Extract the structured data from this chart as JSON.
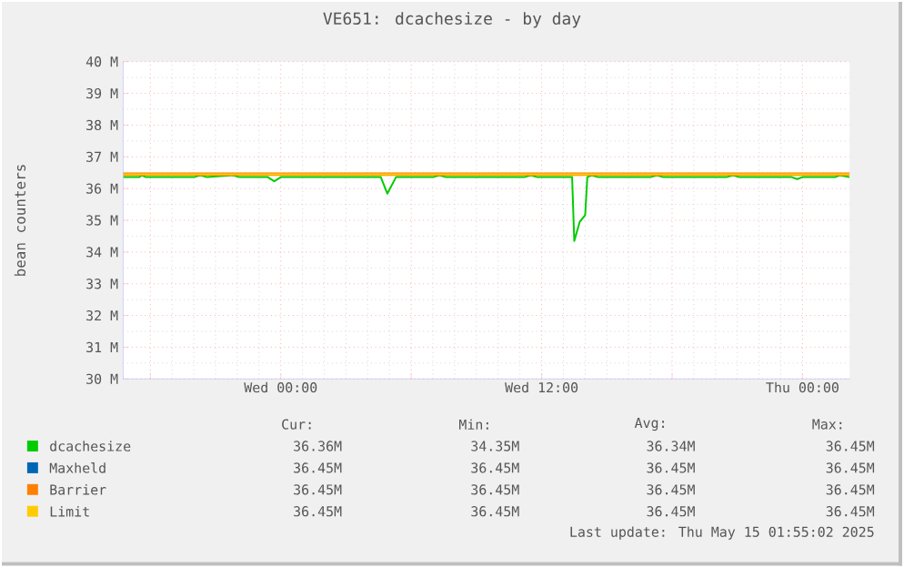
{
  "chart_data": {
    "type": "line",
    "title": "VE651: dcachesize - by day",
    "ylabel": "bean counters",
    "xlim": [
      "2025-05-13T16:45",
      "2025-05-15T02:10"
    ],
    "xticks": [
      {
        "value": "2025-05-13T18:00",
        "label": null
      },
      {
        "value": "2025-05-14T00:00",
        "label": "Wed 00:00"
      },
      {
        "value": "2025-05-14T06:00",
        "label": null
      },
      {
        "value": "2025-05-14T12:00",
        "label": "Wed 12:00"
      },
      {
        "value": "2025-05-14T18:00",
        "label": null
      },
      {
        "value": "2025-05-15T00:00",
        "label": "Thu 00:00"
      }
    ],
    "ylim": [
      30,
      40
    ],
    "yticks": [
      {
        "value": 30,
        "label": "30 M"
      },
      {
        "value": 31,
        "label": "31 M"
      },
      {
        "value": 32,
        "label": "32 M"
      },
      {
        "value": 33,
        "label": "33 M"
      },
      {
        "value": 34,
        "label": "34 M"
      },
      {
        "value": 35,
        "label": "35 M"
      },
      {
        "value": 36,
        "label": "36 M"
      },
      {
        "value": 37,
        "label": "37 M"
      },
      {
        "value": 38,
        "label": "38 M"
      },
      {
        "value": 39,
        "label": "39 M"
      },
      {
        "value": 40,
        "label": "40 M"
      }
    ],
    "grid": true,
    "legend": "bottom",
    "x": [
      "2025-05-13T16:45",
      "2025-05-13T17:30",
      "2025-05-13T17:36",
      "2025-05-13T17:48",
      "2025-05-13T20:00",
      "2025-05-13T20:18",
      "2025-05-13T20:36",
      "2025-05-13T21:48",
      "2025-05-13T22:06",
      "2025-05-13T23:24",
      "2025-05-13T23:42",
      "2025-05-14T00:00",
      "2025-05-14T04:36",
      "2025-05-14T04:54",
      "2025-05-14T05:18",
      "2025-05-14T07:00",
      "2025-05-14T07:18",
      "2025-05-14T07:36",
      "2025-05-14T11:12",
      "2025-05-14T11:30",
      "2025-05-14T11:48",
      "2025-05-14T13:24",
      "2025-05-14T13:30",
      "2025-05-14T13:45",
      "2025-05-14T14:00",
      "2025-05-14T14:06",
      "2025-05-14T14:18",
      "2025-05-14T14:36",
      "2025-05-14T17:00",
      "2025-05-14T17:18",
      "2025-05-14T17:36",
      "2025-05-14T20:30",
      "2025-05-14T20:48",
      "2025-05-14T21:06",
      "2025-05-14T23:30",
      "2025-05-14T23:45",
      "2025-05-15T00:00",
      "2025-05-15T01:30",
      "2025-05-15T01:42",
      "2025-05-15T02:10"
    ],
    "series": [
      {
        "name": "dcachesize",
        "color": "#00cc00",
        "values": [
          36.36,
          36.36,
          36.42,
          36.36,
          36.36,
          36.42,
          36.36,
          36.42,
          36.36,
          36.36,
          36.23,
          36.36,
          36.36,
          35.84,
          36.36,
          36.36,
          36.42,
          36.36,
          36.36,
          36.42,
          36.36,
          36.36,
          34.35,
          34.95,
          35.16,
          36.36,
          36.42,
          36.36,
          36.36,
          36.42,
          36.36,
          36.36,
          36.42,
          36.36,
          36.36,
          36.3,
          36.36,
          36.36,
          36.42,
          36.36
        ]
      },
      {
        "name": "Maxheld",
        "color": "#0066b3",
        "values": [
          null,
          null,
          null,
          null,
          null,
          null,
          null,
          null,
          null,
          null,
          null,
          null,
          null,
          null,
          null,
          null,
          null,
          null,
          null,
          null,
          null,
          null,
          null,
          null,
          null,
          null,
          null,
          null,
          null,
          null,
          null,
          null,
          null,
          null,
          null,
          null,
          null,
          null,
          null,
          null
        ]
      },
      {
        "name": "Barrier",
        "color": "#ff8000",
        "x": [
          "2025-05-13T16:45",
          "2025-05-15T02:10"
        ],
        "values": [
          36.45,
          36.45
        ]
      },
      {
        "name": "Limit",
        "color": "#ffcc00",
        "x": [
          "2025-05-13T16:45",
          "2025-05-15T02:10"
        ],
        "values": [
          36.45,
          36.45
        ]
      }
    ],
    "annotations": [
      "Cur:",
      "Min:",
      "Avg:",
      "Max:",
      "36.36M",
      "34.35M",
      "36.34M",
      "36.45M",
      "36.45M",
      "36.45M",
      "36.45M",
      "36.45M",
      "36.45M",
      "36.45M",
      "36.45M",
      "36.45M",
      "36.45M",
      "36.45M",
      "36.45M",
      "36.45M",
      "Last update: Thu May 15 01:55:02 2025"
    ]
  }
}
